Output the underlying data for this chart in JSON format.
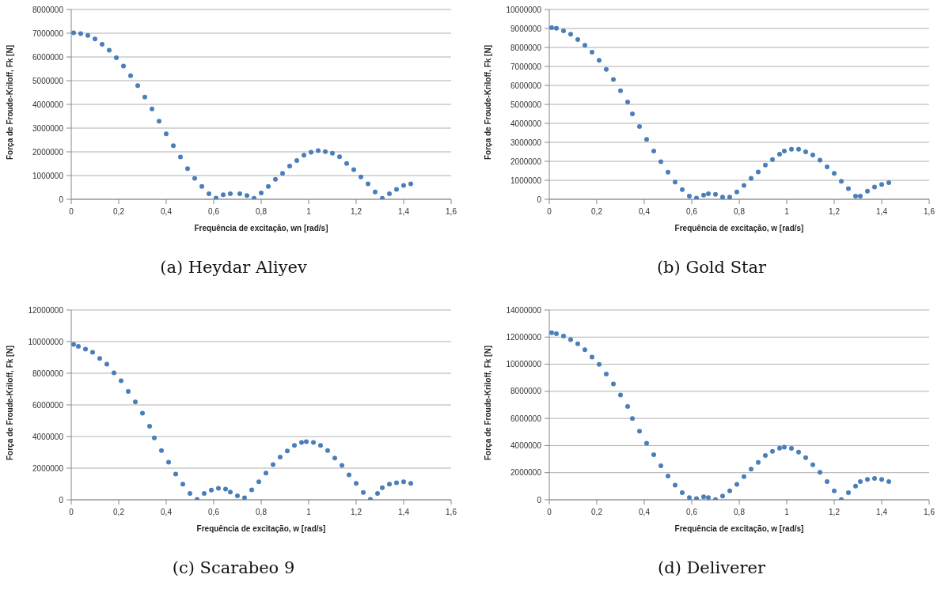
{
  "chart_data": [
    {
      "type": "scatter",
      "title": "(a) Heydar Aliyev",
      "xlabel": "Frequência de excitação, wn [rad/s]",
      "ylabel": "Força de Froude-Kriloff, Fk [N]",
      "grid": "y",
      "marker": "circle",
      "xlim": [
        0,
        1.6
      ],
      "ylim": [
        0,
        8000000
      ],
      "xticks": [
        {
          "value": 0,
          "label": "0"
        },
        {
          "value": 0.2,
          "label": "0,2"
        },
        {
          "value": 0.4,
          "label": "0,4"
        },
        {
          "value": 0.6,
          "label": "0,6"
        },
        {
          "value": 0.8,
          "label": "0,8"
        },
        {
          "value": 1,
          "label": "1"
        },
        {
          "value": 1.2,
          "label": "1,2"
        },
        {
          "value": 1.4,
          "label": "1,4"
        },
        {
          "value": 1.6,
          "label": "1,6"
        }
      ],
      "yticks": [
        0,
        1000000,
        2000000,
        3000000,
        4000000,
        5000000,
        6000000,
        7000000,
        8000000
      ],
      "x": [
        0.01,
        0.04,
        0.07,
        0.1,
        0.13,
        0.16,
        0.19,
        0.22,
        0.25,
        0.28,
        0.31,
        0.34,
        0.37,
        0.4,
        0.43,
        0.46,
        0.49,
        0.52,
        0.55,
        0.58,
        0.61,
        0.64,
        0.67,
        0.71,
        0.74,
        0.77,
        0.8,
        0.83,
        0.86,
        0.89,
        0.92,
        0.95,
        0.98,
        1.01,
        1.04,
        1.07,
        1.1,
        1.13,
        1.16,
        1.19,
        1.22,
        1.25,
        1.28,
        1.31,
        1.34,
        1.37,
        1.4,
        1.43
      ],
      "series": [
        {
          "color": "#4a7ebb",
          "values": [
            7020000,
            6980000,
            6910000,
            6760000,
            6530000,
            6280000,
            5970000,
            5620000,
            5210000,
            4790000,
            4310000,
            3810000,
            3290000,
            2760000,
            2260000,
            1780000,
            1290000,
            880000,
            540000,
            230000,
            50000,
            190000,
            230000,
            230000,
            160000,
            40000,
            270000,
            540000,
            840000,
            1090000,
            1400000,
            1630000,
            1860000,
            1980000,
            2050000,
            2010000,
            1940000,
            1790000,
            1510000,
            1250000,
            940000,
            650000,
            310000,
            40000,
            230000,
            420000,
            580000,
            650000
          ]
        }
      ]
    },
    {
      "type": "scatter",
      "title": "(b) Gold Star",
      "xlabel": "Frequência de excitação, w [rad/s]",
      "ylabel": "Força de Froude-Kriloff, Fk [N]",
      "grid": "y",
      "marker": "circle",
      "xlim": [
        0,
        1.6
      ],
      "ylim": [
        0,
        10000000
      ],
      "xticks": [
        {
          "value": 0,
          "label": "0"
        },
        {
          "value": 0.2,
          "label": "0,2"
        },
        {
          "value": 0.4,
          "label": "0,4"
        },
        {
          "value": 0.6,
          "label": "0,6"
        },
        {
          "value": 0.8,
          "label": "0,8"
        },
        {
          "value": 1,
          "label": "1"
        },
        {
          "value": 1.2,
          "label": "1,2"
        },
        {
          "value": 1.4,
          "label": "1,4"
        },
        {
          "value": 1.6,
          "label": "1,6"
        }
      ],
      "yticks": [
        0,
        1000000,
        2000000,
        3000000,
        4000000,
        5000000,
        6000000,
        7000000,
        8000000,
        9000000,
        10000000
      ],
      "x": [
        0.01,
        0.03,
        0.06,
        0.09,
        0.12,
        0.15,
        0.18,
        0.21,
        0.24,
        0.27,
        0.3,
        0.33,
        0.35,
        0.38,
        0.41,
        0.44,
        0.47,
        0.5,
        0.53,
        0.56,
        0.59,
        0.62,
        0.65,
        0.67,
        0.7,
        0.73,
        0.76,
        0.79,
        0.82,
        0.85,
        0.88,
        0.91,
        0.94,
        0.97,
        0.99,
        1.02,
        1.05,
        1.08,
        1.11,
        1.14,
        1.17,
        1.2,
        1.23,
        1.26,
        1.29,
        1.31,
        1.34,
        1.37,
        1.4,
        1.43
      ],
      "series": [
        {
          "color": "#4a7ebb",
          "values": [
            9040000,
            9010000,
            8880000,
            8700000,
            8420000,
            8110000,
            7750000,
            7320000,
            6840000,
            6310000,
            5720000,
            5120000,
            4500000,
            3830000,
            3160000,
            2540000,
            1980000,
            1430000,
            910000,
            510000,
            170000,
            60000,
            220000,
            290000,
            260000,
            110000,
            110000,
            390000,
            730000,
            1100000,
            1440000,
            1800000,
            2090000,
            2370000,
            2540000,
            2640000,
            2640000,
            2500000,
            2330000,
            2060000,
            1710000,
            1360000,
            950000,
            560000,
            170000,
            170000,
            430000,
            650000,
            780000,
            870000
          ]
        }
      ]
    },
    {
      "type": "scatter",
      "title": "(c) Scarabeo 9",
      "xlabel": "Frequência de excitação, w [rad/s]",
      "ylabel": "Força de Froude-Kriloff, Fk [N]",
      "grid": "y",
      "marker": "circle",
      "xlim": [
        0,
        1.6
      ],
      "ylim": [
        0,
        12000000
      ],
      "xticks": [
        {
          "value": 0,
          "label": "0"
        },
        {
          "value": 0.2,
          "label": "0,2"
        },
        {
          "value": 0.4,
          "label": "0,4"
        },
        {
          "value": 0.6,
          "label": "0,6"
        },
        {
          "value": 0.8,
          "label": "0,8"
        },
        {
          "value": 1,
          "label": "1"
        },
        {
          "value": 1.2,
          "label": "1,2"
        },
        {
          "value": 1.4,
          "label": "1,4"
        },
        {
          "value": 1.6,
          "label": "1,6"
        }
      ],
      "yticks": [
        0,
        2000000,
        4000000,
        6000000,
        8000000,
        10000000,
        12000000
      ],
      "x": [
        0.01,
        0.03,
        0.06,
        0.09,
        0.12,
        0.15,
        0.18,
        0.21,
        0.24,
        0.27,
        0.3,
        0.33,
        0.35,
        0.38,
        0.41,
        0.44,
        0.47,
        0.5,
        0.53,
        0.56,
        0.59,
        0.62,
        0.65,
        0.67,
        0.7,
        0.73,
        0.76,
        0.79,
        0.82,
        0.85,
        0.88,
        0.91,
        0.94,
        0.97,
        0.99,
        1.02,
        1.05,
        1.08,
        1.11,
        1.14,
        1.17,
        1.2,
        1.23,
        1.26,
        1.29,
        1.31,
        1.34,
        1.37,
        1.4,
        1.43
      ],
      "series": [
        {
          "color": "#4a7ebb",
          "values": [
            9820000,
            9700000,
            9530000,
            9320000,
            8940000,
            8580000,
            8030000,
            7520000,
            6850000,
            6190000,
            5470000,
            4650000,
            3910000,
            3110000,
            2370000,
            1630000,
            990000,
            400000,
            20000,
            400000,
            610000,
            720000,
            680000,
            490000,
            250000,
            130000,
            630000,
            1140000,
            1690000,
            2220000,
            2700000,
            3090000,
            3440000,
            3630000,
            3680000,
            3630000,
            3440000,
            3110000,
            2640000,
            2170000,
            1580000,
            1040000,
            460000,
            20000,
            400000,
            760000,
            990000,
            1080000,
            1140000,
            1040000
          ]
        }
      ]
    },
    {
      "type": "scatter",
      "title": "(d) Deliverer",
      "xlabel": "Frequência de excitação, w [rad/s]",
      "ylabel": "Força de Froude-Kriloff, Fk [N]",
      "grid": "y",
      "marker": "circle",
      "xlim": [
        0,
        1.6
      ],
      "ylim": [
        0,
        14000000
      ],
      "xticks": [
        {
          "value": 0,
          "label": "0"
        },
        {
          "value": 0.2,
          "label": "0,2"
        },
        {
          "value": 0.4,
          "label": "0,4"
        },
        {
          "value": 0.6,
          "label": "0,6"
        },
        {
          "value": 0.8,
          "label": "0,8"
        },
        {
          "value": 1,
          "label": "1"
        },
        {
          "value": 1.2,
          "label": "1,2"
        },
        {
          "value": 1.4,
          "label": "1,4"
        },
        {
          "value": 1.6,
          "label": "1,6"
        }
      ],
      "yticks": [
        0,
        2000000,
        4000000,
        6000000,
        8000000,
        10000000,
        12000000,
        14000000
      ],
      "x": [
        0.01,
        0.03,
        0.06,
        0.09,
        0.12,
        0.15,
        0.18,
        0.21,
        0.24,
        0.27,
        0.3,
        0.33,
        0.35,
        0.38,
        0.41,
        0.44,
        0.47,
        0.5,
        0.53,
        0.56,
        0.59,
        0.62,
        0.65,
        0.67,
        0.7,
        0.73,
        0.76,
        0.79,
        0.82,
        0.85,
        0.88,
        0.91,
        0.94,
        0.97,
        0.99,
        1.02,
        1.05,
        1.08,
        1.11,
        1.14,
        1.17,
        1.2,
        1.23,
        1.26,
        1.29,
        1.31,
        1.34,
        1.37,
        1.4,
        1.43
      ],
      "series": [
        {
          "color": "#4a7ebb",
          "values": [
            12320000,
            12250000,
            12070000,
            11810000,
            11510000,
            11070000,
            10530000,
            9990000,
            9270000,
            8540000,
            7730000,
            6880000,
            6000000,
            5060000,
            4170000,
            3320000,
            2510000,
            1750000,
            1080000,
            520000,
            160000,
            90000,
            220000,
            160000,
            20000,
            270000,
            650000,
            1140000,
            1700000,
            2260000,
            2760000,
            3270000,
            3580000,
            3810000,
            3880000,
            3790000,
            3520000,
            3110000,
            2580000,
            2020000,
            1340000,
            650000,
            20000,
            520000,
            1010000,
            1340000,
            1500000,
            1570000,
            1500000,
            1340000
          ]
        }
      ]
    }
  ]
}
